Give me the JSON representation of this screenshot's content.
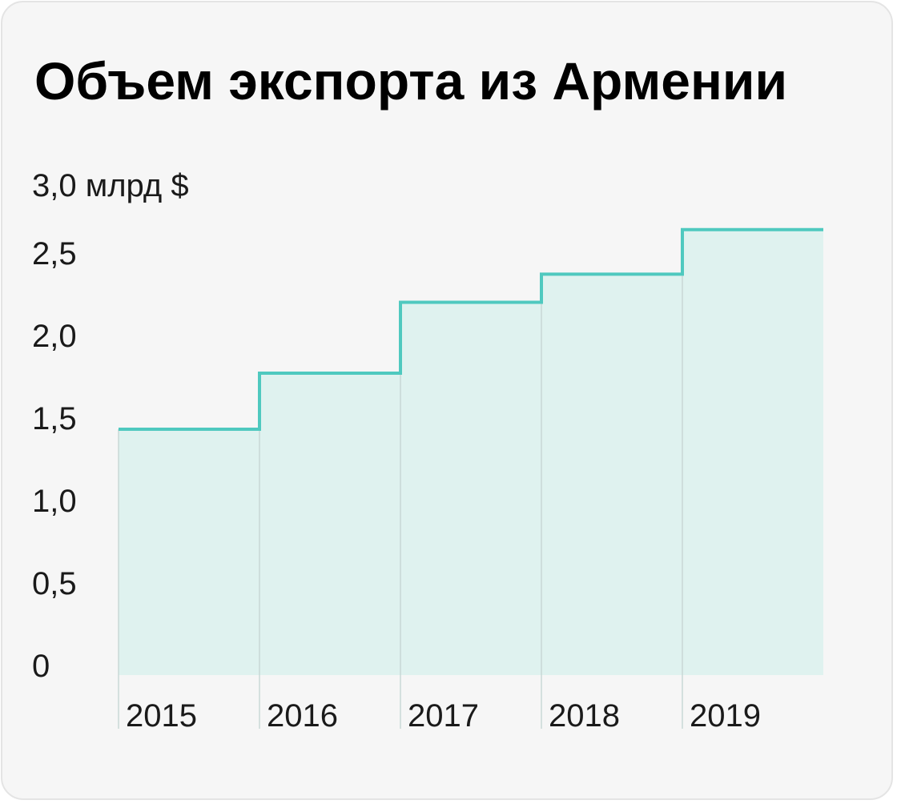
{
  "chart_data": {
    "type": "area",
    "title": "Объем экспорта из Армении",
    "unit_label": "3,0 млрд $",
    "categories": [
      "2015",
      "2016",
      "2017",
      "2018",
      "2019"
    ],
    "values": [
      1.49,
      1.83,
      2.26,
      2.43,
      2.7
    ],
    "ylim": [
      0,
      3.0
    ],
    "y_ticks": [
      {
        "value": 0,
        "label": "0"
      },
      {
        "value": 0.5,
        "label": "0,5"
      },
      {
        "value": 1.0,
        "label": "1,0"
      },
      {
        "value": 1.5,
        "label": "1,5"
      },
      {
        "value": 2.0,
        "label": "2,0"
      },
      {
        "value": 2.5,
        "label": "2,5"
      }
    ],
    "grid": false,
    "legend": "none",
    "colors": {
      "line": "#4fc9bf",
      "fill": "#dff2ef",
      "separator": "#c8d8d5"
    }
  }
}
